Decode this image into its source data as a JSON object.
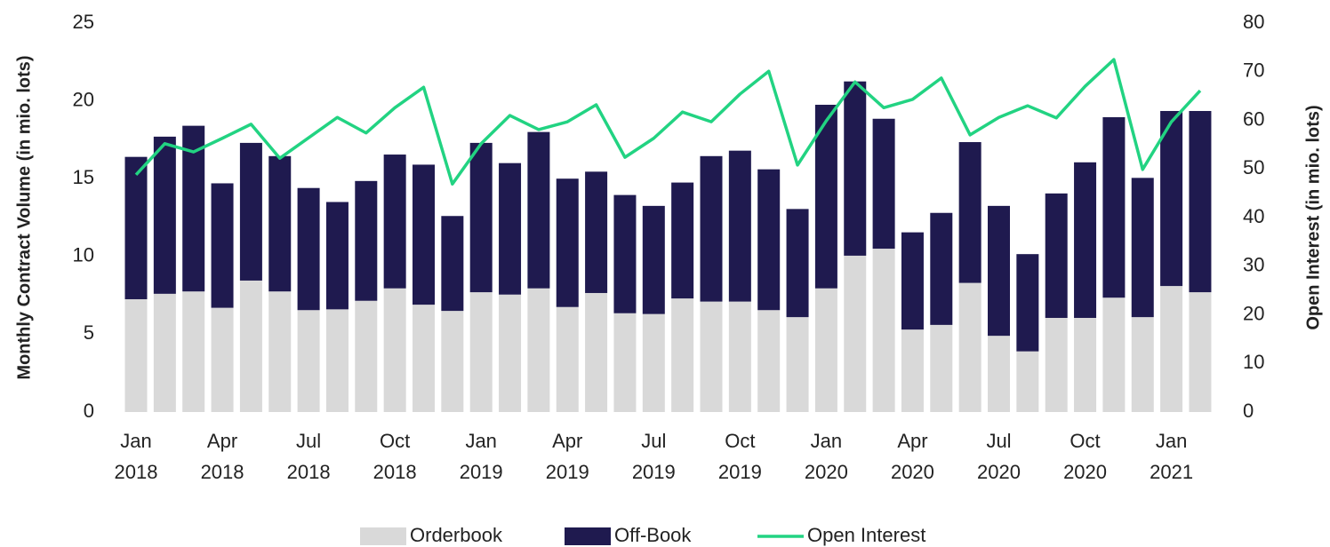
{
  "chart_data": {
    "type": "bar",
    "stacked": true,
    "categories": [
      "Jan 2018",
      null,
      null,
      "Apr 2018",
      null,
      null,
      "Jul 2018",
      null,
      null,
      "Oct 2018",
      null,
      null,
      "Jan 2019",
      null,
      null,
      "Apr 2019",
      null,
      null,
      "Jul 2019",
      null,
      null,
      "Oct 2019",
      null,
      null,
      "Jan 2020",
      null,
      null,
      "Apr 2020",
      null,
      null,
      "Jul 2020",
      null,
      null,
      "Oct 2020",
      null,
      null,
      "Jan 2021",
      null
    ],
    "series": [
      {
        "name": "Orderbook",
        "color": "#d9d9d9",
        "values": [
          7.25,
          7.6,
          7.75,
          6.7,
          8.45,
          7.75,
          6.55,
          6.6,
          7.15,
          7.95,
          6.9,
          6.5,
          7.7,
          7.55,
          7.95,
          6.75,
          7.65,
          6.35,
          6.3,
          7.3,
          7.1,
          7.1,
          6.55,
          6.1,
          7.95,
          10.05,
          10.5,
          5.3,
          5.6,
          8.3,
          4.9,
          3.9,
          6.05,
          6.05,
          7.35,
          6.1,
          8.1,
          7.7
        ]
      },
      {
        "name": "Off-Book",
        "color": "#1f1a4f",
        "values": [
          9.15,
          10.1,
          10.65,
          8.0,
          8.85,
          8.7,
          7.85,
          6.9,
          7.7,
          8.6,
          9.0,
          6.1,
          9.6,
          8.45,
          10.05,
          8.25,
          7.8,
          7.6,
          6.95,
          7.45,
          9.35,
          9.7,
          9.05,
          6.95,
          11.8,
          11.2,
          8.35,
          6.25,
          7.2,
          9.05,
          8.35,
          6.25,
          8.0,
          10.0,
          11.6,
          8.95,
          11.25,
          11.65
        ]
      },
      {
        "name": "Open Interest",
        "color": "#22d382",
        "type": "line",
        "axis": "y2",
        "values": [
          48.8,
          55.2,
          53.5,
          56.3,
          59.2,
          52.2,
          56.4,
          60.6,
          57.4,
          62.6,
          66.8,
          46.9,
          55.2,
          61.0,
          58.1,
          59.7,
          63.2,
          52.4,
          56.3,
          61.7,
          59.7,
          65.4,
          70.1,
          50.8,
          59.9,
          67.9,
          62.6,
          64.3,
          68.7,
          57.0,
          60.6,
          63.0,
          60.5,
          67.0,
          72.5,
          49.9,
          59.7,
          66.1
        ]
      }
    ],
    "ylabel": "Monthly Contract Volume (in mio. lots)",
    "y2label": "Open Interest (in mio. lots)",
    "ylim": [
      0,
      25
    ],
    "yticks": [
      0,
      5,
      10,
      15,
      20,
      25
    ],
    "y2lim": [
      0,
      80
    ],
    "y2ticks": [
      0,
      10,
      20,
      30,
      40,
      50,
      60,
      70,
      80
    ],
    "legend": "bottom"
  }
}
